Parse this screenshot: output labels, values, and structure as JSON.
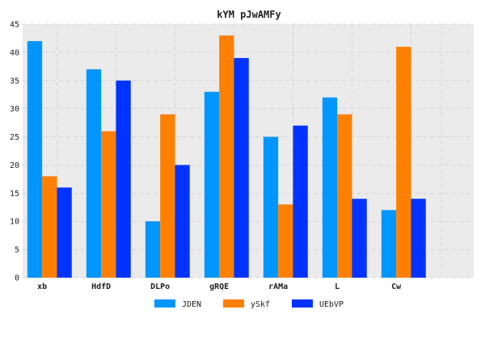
{
  "chart_data": {
    "type": "bar",
    "title": "kYM pJwAMFy",
    "xlabel": "",
    "ylabel": "",
    "categories": [
      "xb",
      "HdfD",
      "DLPo",
      "gRQE",
      "rAMa",
      "L",
      "Cw"
    ],
    "series": [
      {
        "name": "JDEN",
        "color": "#0096ff",
        "values": [
          42,
          37,
          10,
          33,
          25,
          32,
          12
        ]
      },
      {
        "name": "ySkf",
        "color": "#ff8000",
        "values": [
          18,
          26,
          29,
          43,
          13,
          29,
          41
        ]
      },
      {
        "name": "UEbVP",
        "color": "#0033ff",
        "values": [
          16,
          35,
          20,
          39,
          27,
          14,
          14
        ]
      }
    ],
    "ylim": [
      0,
      45
    ],
    "yticks": [
      0,
      5,
      10,
      15,
      20,
      25,
      30,
      35,
      40,
      45
    ],
    "grid": true,
    "legend_position": "bottom-center",
    "background_color": "#ebebeb"
  }
}
